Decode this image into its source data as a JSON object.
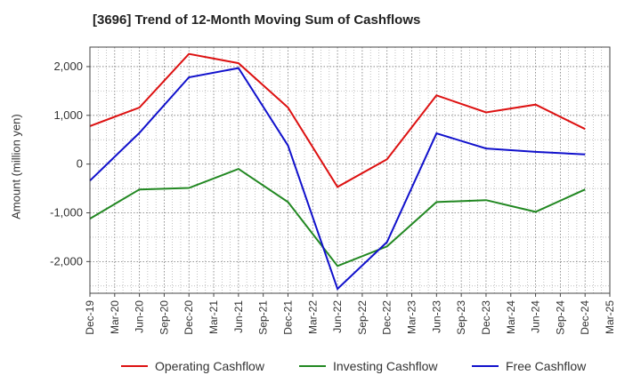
{
  "chart_data": {
    "type": "line",
    "title": "[3696]  Trend of 12-Month Moving Sum of Cashflows",
    "xlabel": "",
    "ylabel": "Amount (million yen)",
    "categories": [
      "Dec-19",
      "Mar-20",
      "Jun-20",
      "Sep-20",
      "Dec-20",
      "Mar-21",
      "Jun-21",
      "Sep-21",
      "Dec-21",
      "Mar-22",
      "Jun-22",
      "Sep-22",
      "Dec-22",
      "Mar-23",
      "Jun-23",
      "Sep-23",
      "Dec-23",
      "Mar-24",
      "Jun-24",
      "Sep-24",
      "Dec-24",
      "Mar-25"
    ],
    "y_ticks": [
      2000,
      1000,
      0,
      -1000,
      -2000
    ],
    "y_tick_labels": [
      "2,000",
      "1,000",
      "0",
      "-1,000",
      "-2,000"
    ],
    "ylim": [
      -2650,
      2400
    ],
    "grid": true,
    "legend_position": "bottom",
    "series": [
      {
        "name": "Operating Cashflow",
        "color": "#dd1111",
        "x": [
          "Dec-19",
          "Jun-20",
          "Dec-20",
          "Jun-21",
          "Dec-21",
          "Jun-22",
          "Dec-22",
          "Jun-23",
          "Dec-23",
          "Jun-24",
          "Dec-24"
        ],
        "values": [
          780,
          1160,
          2260,
          2070,
          1160,
          -470,
          100,
          1410,
          1060,
          1220,
          720
        ]
      },
      {
        "name": "Investing Cashflow",
        "color": "#228822",
        "x": [
          "Dec-19",
          "Jun-20",
          "Dec-20",
          "Jun-21",
          "Dec-21",
          "Jun-22",
          "Dec-22",
          "Jun-23",
          "Dec-23",
          "Jun-24",
          "Dec-24"
        ],
        "values": [
          -1120,
          -520,
          -490,
          -100,
          -780,
          -2090,
          -1690,
          -780,
          -740,
          -980,
          -520
        ]
      },
      {
        "name": "Free Cashflow",
        "color": "#1111cc",
        "x": [
          "Dec-19",
          "Jun-20",
          "Dec-20",
          "Jun-21",
          "Dec-21",
          "Jun-22",
          "Dec-22",
          "Jun-23",
          "Dec-23",
          "Jun-24",
          "Dec-24"
        ],
        "values": [
          -340,
          640,
          1780,
          1970,
          380,
          -2560,
          -1600,
          630,
          320,
          250,
          200
        ]
      }
    ]
  }
}
